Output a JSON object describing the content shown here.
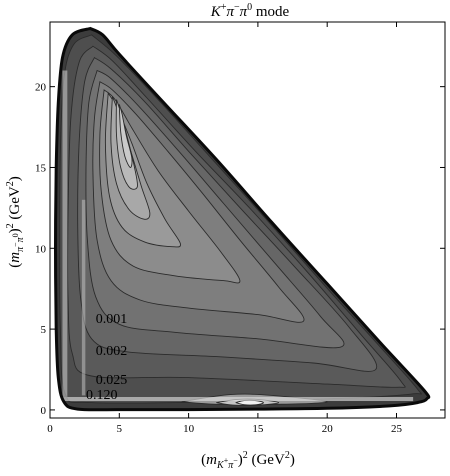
{
  "chart_data": {
    "type": "contour",
    "title": {
      "k": "K",
      "k_sup": "+",
      "pim": "π",
      "pim_sup": "−",
      "pi0": "π",
      "pi0_sup": "0",
      "suffix": " mode"
    },
    "xlabel": {
      "open": "(",
      "m": "m",
      "sub_k": "K",
      "sub_k_sup": "+",
      "sub_pi": "π",
      "sub_pi_sup": "−",
      "close": ")",
      "power": "2",
      "unit_open": " (GeV",
      "unit_power": "2",
      "unit_close": ")"
    },
    "ylabel": {
      "open": "(",
      "m": "m",
      "sub_a": "π",
      "sub_a_sup": "−",
      "sub_b": "π",
      "sub_b_sup": "0",
      "close": ")",
      "power": "2",
      "unit_open": " (GeV",
      "unit_power": "2",
      "unit_close": ")"
    },
    "xlim": [
      0,
      28.5
    ],
    "ylim": [
      -0.5,
      24
    ],
    "xticks": [
      0,
      5,
      10,
      15,
      20,
      25
    ],
    "yticks": [
      0,
      5,
      10,
      15,
      20
    ],
    "xtick_labels": [
      "0",
      "5",
      "10",
      "15",
      "20",
      "25"
    ],
    "ytick_labels": [
      "0",
      "5",
      "10",
      "15",
      "20"
    ],
    "contour_labels": [
      {
        "text": "0.001",
        "x": 3.3,
        "y": 5.7
      },
      {
        "text": "0.002",
        "x": 3.3,
        "y": 3.7
      },
      {
        "text": "0.025",
        "x": 3.3,
        "y": 1.9
      },
      {
        "text": "0.120",
        "x": 2.6,
        "y": 1.0
      }
    ],
    "dalitz_boundary": [
      [
        2.9,
        23.6
      ],
      [
        1.6,
        23.2
      ],
      [
        0.9,
        21.8
      ],
      [
        0.6,
        19.0
      ],
      [
        0.45,
        15.0
      ],
      [
        0.4,
        10.0
      ],
      [
        0.45,
        5.0
      ],
      [
        0.6,
        2.0
      ],
      [
        1.0,
        0.5
      ],
      [
        2.0,
        0.05
      ],
      [
        5.0,
        0.02
      ],
      [
        10.0,
        0.02
      ],
      [
        15.0,
        0.05
      ],
      [
        20.0,
        0.1
      ],
      [
        24.5,
        0.25
      ],
      [
        26.5,
        0.45
      ],
      [
        27.2,
        0.7
      ],
      [
        27.0,
        1.2
      ],
      [
        24.0,
        4.0
      ],
      [
        20.0,
        7.8
      ],
      [
        16.0,
        11.6
      ],
      [
        12.0,
        15.5
      ],
      [
        8.0,
        19.2
      ],
      [
        5.0,
        22.0
      ],
      [
        3.8,
        23.2
      ],
      [
        2.9,
        23.6
      ]
    ],
    "contours": [
      {
        "level": 1,
        "color": "#4e4e4e",
        "points": [
          [
            3.0,
            23.2
          ],
          [
            1.7,
            22.6
          ],
          [
            1.0,
            20.5
          ],
          [
            0.75,
            16.0
          ],
          [
            0.7,
            10.0
          ],
          [
            0.75,
            5.0
          ],
          [
            1.1,
            1.0
          ],
          [
            3.0,
            0.45
          ],
          [
            12.0,
            0.5
          ],
          [
            22.0,
            0.75
          ],
          [
            26.2,
            1.0
          ],
          [
            26.5,
            1.3
          ],
          [
            23.5,
            4.2
          ],
          [
            19.5,
            8.0
          ],
          [
            15.5,
            11.9
          ],
          [
            11.5,
            15.7
          ],
          [
            7.8,
            19.2
          ],
          [
            4.8,
            21.9
          ],
          [
            3.0,
            23.2
          ]
        ]
      },
      {
        "level": 2,
        "color": "#5a5a5a",
        "points": [
          [
            3.1,
            22.5
          ],
          [
            2.1,
            21.5
          ],
          [
            1.5,
            18.0
          ],
          [
            1.3,
            12.0
          ],
          [
            1.3,
            7.0
          ],
          [
            1.6,
            3.5
          ],
          [
            3.0,
            2.1
          ],
          [
            10.0,
            2.0
          ],
          [
            20.0,
            1.6
          ],
          [
            25.0,
            1.4
          ],
          [
            25.3,
            1.8
          ],
          [
            22.5,
            4.6
          ],
          [
            18.5,
            8.6
          ],
          [
            14.5,
            12.4
          ],
          [
            10.5,
            16.0
          ],
          [
            7.0,
            19.3
          ],
          [
            4.5,
            21.6
          ],
          [
            3.1,
            22.5
          ]
        ]
      },
      {
        "level": 3,
        "color": "#666666",
        "points": [
          [
            3.2,
            21.8
          ],
          [
            2.5,
            20.3
          ],
          [
            2.1,
            16.5
          ],
          [
            2.0,
            11.5
          ],
          [
            2.2,
            7.0
          ],
          [
            3.0,
            4.4
          ],
          [
            5.5,
            3.6
          ],
          [
            12.0,
            3.3
          ],
          [
            19.0,
            2.9
          ],
          [
            23.5,
            2.5
          ],
          [
            21.5,
            5.2
          ],
          [
            17.5,
            9.0
          ],
          [
            13.5,
            12.7
          ],
          [
            10.0,
            16.0
          ],
          [
            6.8,
            19.1
          ],
          [
            4.4,
            21.1
          ],
          [
            3.2,
            21.8
          ]
        ]
      },
      {
        "level": 4,
        "color": "#727272",
        "points": [
          [
            3.4,
            21.0
          ],
          [
            2.8,
            19.0
          ],
          [
            2.6,
            15.0
          ],
          [
            2.7,
            10.5
          ],
          [
            3.3,
            7.0
          ],
          [
            5.0,
            5.3
          ],
          [
            9.0,
            4.8
          ],
          [
            15.0,
            4.4
          ],
          [
            21.0,
            3.9
          ],
          [
            19.5,
            5.8
          ],
          [
            16.0,
            9.3
          ],
          [
            12.5,
            12.8
          ],
          [
            9.3,
            16.0
          ],
          [
            6.5,
            18.7
          ],
          [
            4.4,
            20.5
          ],
          [
            3.4,
            21.0
          ]
        ]
      },
      {
        "level": 5,
        "color": "#7e7e7e",
        "points": [
          [
            3.6,
            20.3
          ],
          [
            3.2,
            18.0
          ],
          [
            3.1,
            14.5
          ],
          [
            3.4,
            10.5
          ],
          [
            4.4,
            8.0
          ],
          [
            6.5,
            6.8
          ],
          [
            10.0,
            6.3
          ],
          [
            15.0,
            5.9
          ],
          [
            18.3,
            5.5
          ],
          [
            16.5,
            7.6
          ],
          [
            13.8,
            10.4
          ],
          [
            11.0,
            13.4
          ],
          [
            8.5,
            16.0
          ],
          [
            6.2,
            18.3
          ],
          [
            4.5,
            19.8
          ],
          [
            3.6,
            20.3
          ]
        ]
      },
      {
        "level": 6,
        "color": "#8c8c8c",
        "points": [
          [
            3.9,
            19.8
          ],
          [
            3.6,
            17.0
          ],
          [
            3.7,
            13.5
          ],
          [
            4.4,
            10.5
          ],
          [
            6.0,
            8.9
          ],
          [
            9.0,
            8.3
          ],
          [
            12.5,
            8.0
          ],
          [
            13.7,
            8.0
          ],
          [
            12.3,
            9.8
          ],
          [
            10.0,
            12.3
          ],
          [
            7.8,
            14.8
          ],
          [
            6.0,
            17.3
          ],
          [
            4.7,
            19.2
          ],
          [
            3.9,
            19.8
          ]
        ]
      },
      {
        "level": 7,
        "color": "#9a9a9a",
        "points": [
          [
            4.2,
            19.6
          ],
          [
            4.0,
            16.5
          ],
          [
            4.3,
            13.2
          ],
          [
            5.2,
            11.3
          ],
          [
            6.8,
            10.4
          ],
          [
            8.8,
            10.1
          ],
          [
            9.4,
            10.3
          ],
          [
            8.3,
            11.8
          ],
          [
            7.0,
            14.0
          ],
          [
            5.9,
            16.5
          ],
          [
            4.9,
            18.6
          ],
          [
            4.2,
            19.6
          ]
        ]
      },
      {
        "level": 8,
        "color": "#a8a8a8",
        "points": [
          [
            4.5,
            19.4
          ],
          [
            4.4,
            16.5
          ],
          [
            4.8,
            14.0
          ],
          [
            5.7,
            12.4
          ],
          [
            6.8,
            11.8
          ],
          [
            7.2,
            12.2
          ],
          [
            6.6,
            13.8
          ],
          [
            5.9,
            15.8
          ],
          [
            5.1,
            18.0
          ],
          [
            4.5,
            19.4
          ]
        ]
      },
      {
        "level": 9,
        "color": "#b9b9b9",
        "points": [
          [
            4.8,
            19.2
          ],
          [
            4.8,
            17.0
          ],
          [
            5.1,
            15.0
          ],
          [
            5.7,
            13.8
          ],
          [
            6.3,
            13.8
          ],
          [
            6.1,
            15.0
          ],
          [
            5.6,
            16.8
          ],
          [
            5.1,
            18.4
          ],
          [
            4.8,
            19.2
          ]
        ]
      },
      {
        "level": 10,
        "color": "#cacaca",
        "points": [
          [
            5.0,
            18.9
          ],
          [
            5.1,
            17.2
          ],
          [
            5.4,
            15.7
          ],
          [
            5.8,
            15.0
          ],
          [
            5.9,
            15.6
          ],
          [
            5.5,
            17.0
          ],
          [
            5.2,
            18.3
          ],
          [
            5.0,
            18.9
          ]
        ]
      },
      {
        "level": 11,
        "color": "#9a9a9a",
        "points": [
          [
            9.5,
            0.5
          ],
          [
            12.0,
            0.35
          ],
          [
            16.5,
            0.35
          ],
          [
            20.0,
            0.5
          ],
          [
            16.0,
            0.9
          ],
          [
            13.0,
            0.95
          ],
          [
            9.5,
            0.5
          ]
        ]
      },
      {
        "level": 12,
        "color": "#c4c4c4",
        "points": [
          [
            12.0,
            0.45
          ],
          [
            13.2,
            0.3
          ],
          [
            15.0,
            0.3
          ],
          [
            16.5,
            0.45
          ],
          [
            15.0,
            0.65
          ],
          [
            13.5,
            0.65
          ],
          [
            12.0,
            0.45
          ]
        ]
      },
      {
        "level": 13,
        "color": "#f2f2f2",
        "points": [
          [
            13.4,
            0.45
          ],
          [
            14.0,
            0.32
          ],
          [
            14.9,
            0.32
          ],
          [
            15.4,
            0.45
          ],
          [
            14.8,
            0.58
          ],
          [
            14.0,
            0.58
          ],
          [
            13.4,
            0.45
          ]
        ]
      }
    ],
    "hatched_bands": [
      {
        "orientation": "vertical",
        "from": 0.9,
        "to": 1.25,
        "ymin": 0.8,
        "ymax": 21.0,
        "color": "#d2d2d2"
      },
      {
        "orientation": "vertical",
        "from": 2.3,
        "to": 2.55,
        "ymin": 0.9,
        "ymax": 13.0,
        "color": "#c0c0c0"
      },
      {
        "orientation": "horizontal",
        "from": 0.55,
        "to": 0.8,
        "xmin": 0.8,
        "xmax": 26.2,
        "color": "#e6e6e6"
      }
    ],
    "grid": false,
    "legend": "none"
  }
}
